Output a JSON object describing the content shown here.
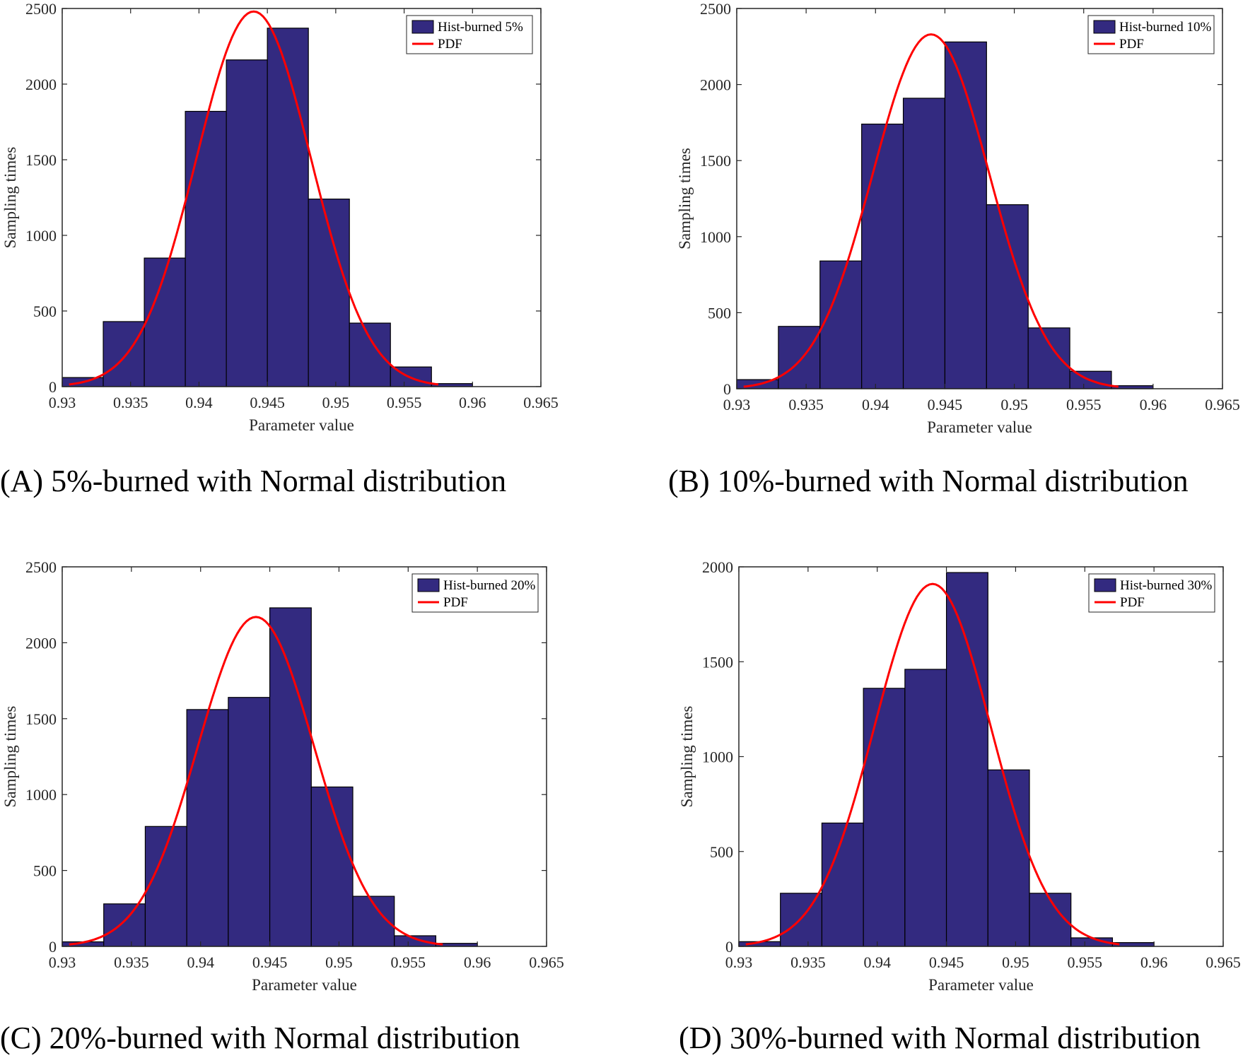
{
  "chart_data": [
    {
      "type": "bar",
      "caption": "(A)  5%-burned with Normal distribution",
      "xlabel": "Parameter value",
      "ylabel": "Sampling times",
      "xlim": [
        0.93,
        0.965
      ],
      "ylim": [
        0,
        2500
      ],
      "xticks": [
        "0.93",
        "0.935",
        "0.94",
        "0.945",
        "0.95",
        "0.955",
        "0.96",
        "0.965"
      ],
      "yticks": [
        "0",
        "500",
        "1000",
        "1500",
        "2000",
        "2500"
      ],
      "bin_edges": [
        0.93,
        0.933,
        0.936,
        0.939,
        0.942,
        0.945,
        0.948,
        0.951,
        0.954,
        0.957,
        0.96
      ],
      "values": [
        60,
        430,
        850,
        1820,
        2160,
        2370,
        1240,
        420,
        130,
        20
      ],
      "series": [
        {
          "name": "Hist-burned 5%",
          "kind": "histogram",
          "color": "#332a80"
        },
        {
          "name": "PDF",
          "kind": "normal-curve",
          "color": "#ff0000",
          "mean": 0.944,
          "sd": 0.0042,
          "peak": 2480,
          "x_range": [
            0.9305,
            0.9575
          ]
        }
      ],
      "legend": "top-right",
      "grid": false
    },
    {
      "type": "bar",
      "caption": "(B)  10%-burned with Normal distribution",
      "xlabel": "Parameter value",
      "ylabel": "Sampling times",
      "xlim": [
        0.93,
        0.965
      ],
      "ylim": [
        0,
        2500
      ],
      "xticks": [
        "0.93",
        "0.935",
        "0.94",
        "0.945",
        "0.95",
        "0.955",
        "0.96",
        "0.965"
      ],
      "yticks": [
        "0",
        "500",
        "1000",
        "1500",
        "2000",
        "2500"
      ],
      "bin_edges": [
        0.93,
        0.933,
        0.936,
        0.939,
        0.942,
        0.945,
        0.948,
        0.951,
        0.954,
        0.957,
        0.96
      ],
      "values": [
        60,
        410,
        840,
        1740,
        1910,
        2280,
        1210,
        400,
        115,
        20
      ],
      "series": [
        {
          "name": "Hist-burned 10%",
          "kind": "histogram",
          "color": "#332a80"
        },
        {
          "name": "PDF",
          "kind": "normal-curve",
          "color": "#ff0000",
          "mean": 0.944,
          "sd": 0.0042,
          "peak": 2330,
          "x_range": [
            0.9305,
            0.9575
          ]
        }
      ],
      "legend": "top-right",
      "grid": false
    },
    {
      "type": "bar",
      "caption": "(C) 20%-burned with Normal distribution",
      "xlabel": "Parameter value",
      "ylabel": "Sampling times",
      "xlim": [
        0.93,
        0.965
      ],
      "ylim": [
        0,
        2500
      ],
      "xticks": [
        "0.93",
        "0.935",
        "0.94",
        "0.945",
        "0.95",
        "0.955",
        "0.96",
        "0.965"
      ],
      "yticks": [
        "0",
        "500",
        "1000",
        "1500",
        "2000",
        "2500"
      ],
      "bin_edges": [
        0.93,
        0.933,
        0.936,
        0.939,
        0.942,
        0.945,
        0.948,
        0.951,
        0.954,
        0.957,
        0.96
      ],
      "values": [
        30,
        280,
        790,
        1560,
        1640,
        2230,
        1050,
        330,
        70,
        20
      ],
      "series": [
        {
          "name": "Hist-burned 20%",
          "kind": "histogram",
          "color": "#332a80"
        },
        {
          "name": "PDF",
          "kind": "normal-curve",
          "color": "#ff0000",
          "mean": 0.944,
          "sd": 0.0042,
          "peak": 2170,
          "x_range": [
            0.9305,
            0.9575
          ]
        }
      ],
      "legend": "top-right",
      "grid": false
    },
    {
      "type": "bar",
      "caption": "(D) 30%-burned with Normal distribution",
      "xlabel": "Parameter value",
      "ylabel": "Sampling times",
      "xlim": [
        0.93,
        0.965
      ],
      "ylim": [
        0,
        2000
      ],
      "xticks": [
        "0.93",
        "0.935",
        "0.94",
        "0.945",
        "0.95",
        "0.955",
        "0.96",
        "0.965"
      ],
      "yticks": [
        "0",
        "500",
        "1000",
        "1500",
        "2000"
      ],
      "bin_edges": [
        0.93,
        0.933,
        0.936,
        0.939,
        0.942,
        0.945,
        0.948,
        0.951,
        0.954,
        0.957,
        0.96
      ],
      "values": [
        25,
        280,
        650,
        1360,
        1460,
        1970,
        930,
        280,
        45,
        20
      ],
      "series": [
        {
          "name": "Hist-burned 30%",
          "kind": "histogram",
          "color": "#332a80"
        },
        {
          "name": "PDF",
          "kind": "normal-curve",
          "color": "#ff0000",
          "mean": 0.944,
          "sd": 0.0042,
          "peak": 1910,
          "x_range": [
            0.9305,
            0.9575
          ]
        }
      ],
      "legend": "top-right",
      "grid": false
    }
  ]
}
